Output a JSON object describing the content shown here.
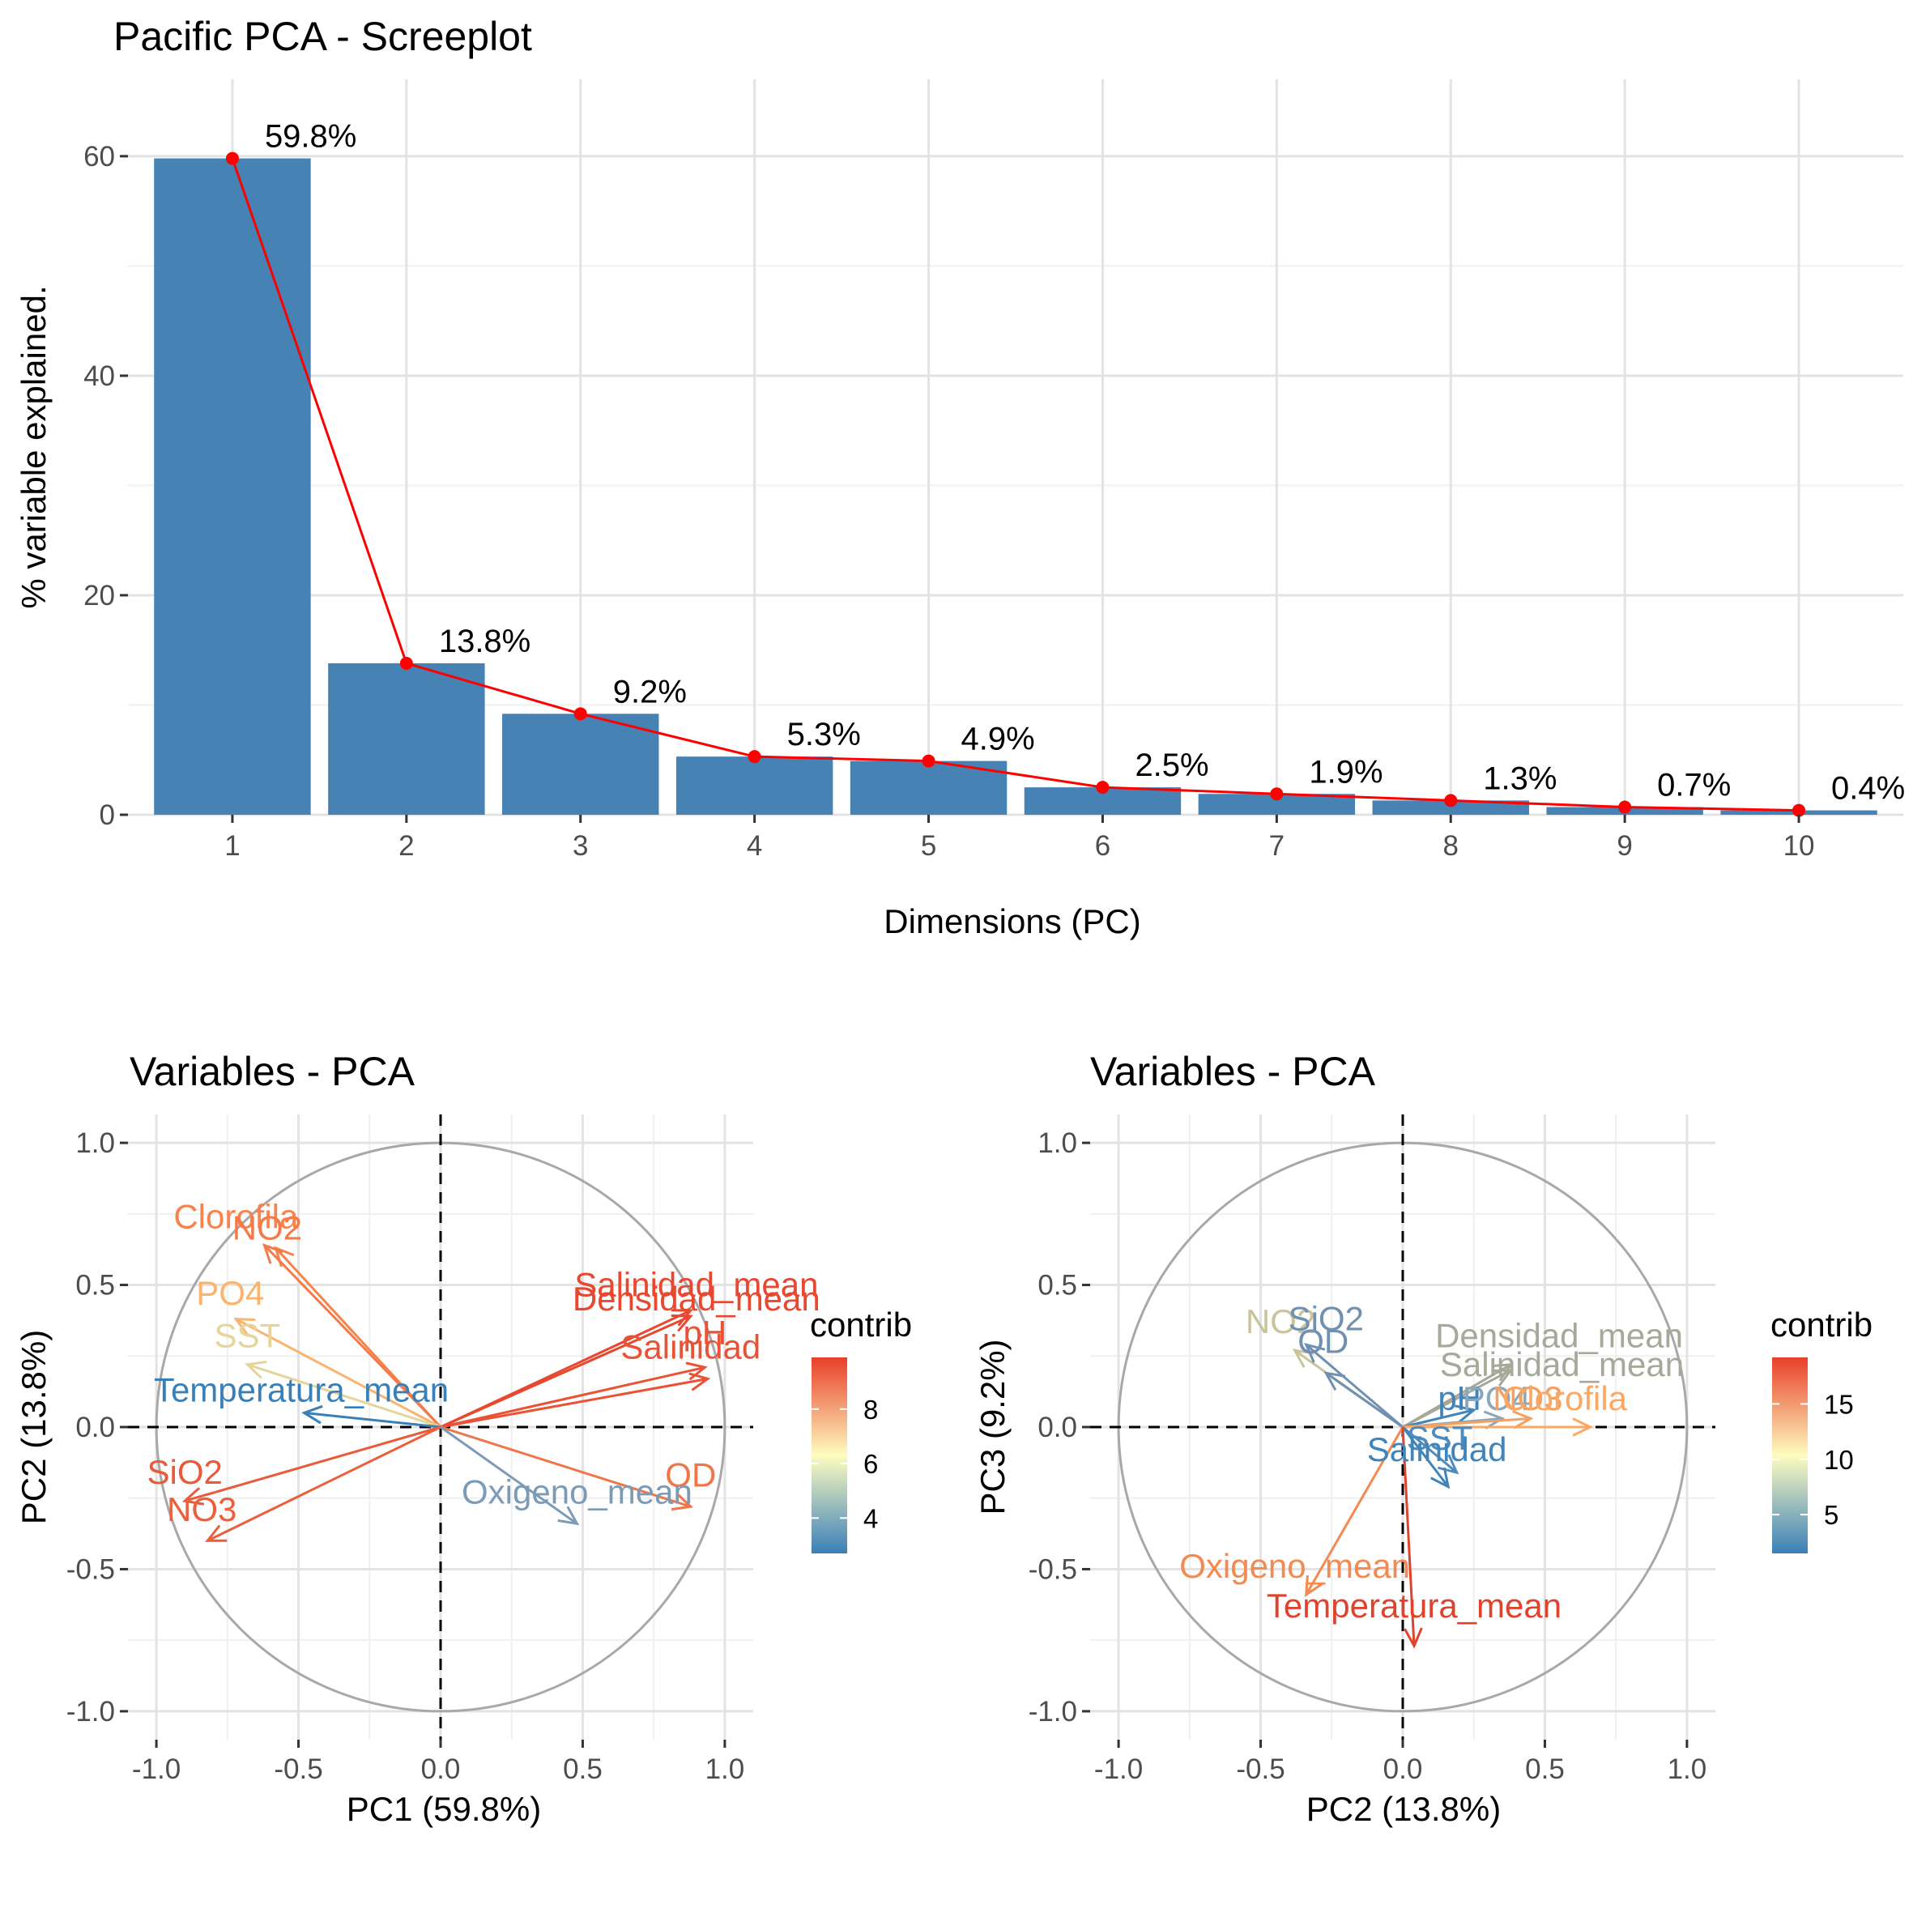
{
  "chart_data": [
    {
      "type": "bar",
      "title": "Pacific PCA - Screeplot",
      "xlabel": "Dimensions (PC)",
      "ylabel": "% variable explained.",
      "categories": [
        "1",
        "2",
        "3",
        "4",
        "5",
        "6",
        "7",
        "8",
        "9",
        "10"
      ],
      "values": [
        59.8,
        13.8,
        9.2,
        5.3,
        4.9,
        2.5,
        1.9,
        1.3,
        0.7,
        0.4
      ],
      "value_labels": [
        "59.8%",
        "13.8%",
        "9.2%",
        "5.3%",
        "4.9%",
        "2.5%",
        "1.9%",
        "1.3%",
        "0.7%",
        "0.4%"
      ],
      "ylim": [
        0,
        67
      ],
      "yticks": [
        0,
        20,
        40,
        60
      ],
      "bar_color": "#4682b4",
      "line_color": "#ff0000",
      "grid": true
    },
    {
      "type": "scatter",
      "title": "Variables - PCA",
      "xlabel": "PC1 (59.8%)",
      "ylabel": "PC2 (13.8%)",
      "xlim": [
        -1.1,
        1.1
      ],
      "ylim": [
        -1.1,
        1.1
      ],
      "ticks": [
        -1.0,
        -0.5,
        0.0,
        0.5,
        1.0
      ],
      "tick_labels": [
        "-1.0",
        "-0.5",
        "0.0",
        "0.5",
        "1.0"
      ],
      "legend_title": "contrib",
      "legend_ticks": [
        {
          "label": "4",
          "value": 4
        },
        {
          "label": "6",
          "value": 6
        },
        {
          "label": "8",
          "value": 8
        }
      ],
      "legend_range": [
        2.7,
        9.9
      ],
      "grid": true,
      "variables": [
        {
          "name": "Clorofila",
          "x": -0.58,
          "y": 0.63,
          "label_x": -0.72,
          "label_y": 0.74,
          "color": "#f7834c"
        },
        {
          "name": "NO2",
          "x": -0.62,
          "y": 0.64,
          "label_x": -0.61,
          "label_y": 0.7,
          "color": "#f47a48"
        },
        {
          "name": "PO4",
          "x": -0.72,
          "y": 0.38,
          "label_x": -0.74,
          "label_y": 0.47,
          "color": "#fbb46e"
        },
        {
          "name": "SST",
          "x": -0.68,
          "y": 0.22,
          "label_x": -0.68,
          "label_y": 0.32,
          "color": "#e5d59a"
        },
        {
          "name": "Temperatura_mean",
          "x": -0.48,
          "y": 0.05,
          "label_x": -0.49,
          "label_y": 0.13,
          "color": "#3a7fb8"
        },
        {
          "name": "SiO2",
          "x": -0.9,
          "y": -0.26,
          "label_x": -0.9,
          "label_y": -0.16,
          "color": "#ea5a3a"
        },
        {
          "name": "NO3",
          "x": -0.82,
          "y": -0.4,
          "label_x": -0.84,
          "label_y": -0.29,
          "color": "#ec5f3c"
        },
        {
          "name": "Salinidad_mean",
          "x": 0.88,
          "y": 0.41,
          "label_x": 0.9,
          "label_y": 0.5,
          "color": "#e84730"
        },
        {
          "name": "Densidad_mean",
          "x": 0.88,
          "y": 0.39,
          "label_x": 0.9,
          "label_y": 0.45,
          "color": "#e84730"
        },
        {
          "name": "pH",
          "x": 0.93,
          "y": 0.21,
          "label_x": 0.93,
          "label_y": 0.33,
          "color": "#e95235"
        },
        {
          "name": "Salinidad",
          "x": 0.94,
          "y": 0.17,
          "label_x": 0.88,
          "label_y": 0.28,
          "color": "#e95235"
        },
        {
          "name": "OD",
          "x": 0.88,
          "y": -0.28,
          "label_x": 0.88,
          "label_y": -0.17,
          "color": "#f07548"
        },
        {
          "name": "Oxigeno_mean",
          "x": 0.48,
          "y": -0.34,
          "label_x": 0.48,
          "label_y": -0.23,
          "color": "#7c9bb6"
        }
      ]
    },
    {
      "type": "scatter",
      "title": "Variables - PCA",
      "xlabel": "PC2 (13.8%)",
      "ylabel": "PC3 (9.2%)",
      "xlim": [
        -1.1,
        1.1
      ],
      "ylim": [
        -1.1,
        1.1
      ],
      "ticks": [
        -1.0,
        -0.5,
        0.0,
        0.5,
        1.0
      ],
      "tick_labels": [
        "-1.0",
        "-0.5",
        "0.0",
        "0.5",
        "1.0"
      ],
      "legend_title": "contrib",
      "legend_ticks": [
        {
          "label": "5",
          "value": 5
        },
        {
          "label": "10",
          "value": 10
        },
        {
          "label": "15",
          "value": 15
        }
      ],
      "legend_range": [
        1.5,
        19.2
      ],
      "grid": true,
      "variables": [
        {
          "name": "NO2",
          "x": -0.38,
          "y": 0.27,
          "label_x": -0.43,
          "label_y": 0.37,
          "color": "#c9c49a"
        },
        {
          "name": "SiO2",
          "x": -0.34,
          "y": 0.29,
          "label_x": -0.27,
          "label_y": 0.38,
          "color": "#6f90b0"
        },
        {
          "name": "OD",
          "x": -0.27,
          "y": 0.19,
          "label_x": -0.28,
          "label_y": 0.3,
          "color": "#6f90b0"
        },
        {
          "name": "Densidad_mean",
          "x": 0.38,
          "y": 0.22,
          "label_x": 0.55,
          "label_y": 0.32,
          "color": "#a6a89a"
        },
        {
          "name": "Salinidad_mean",
          "x": 0.38,
          "y": 0.2,
          "label_x": 0.56,
          "label_y": 0.22,
          "color": "#a6a89a"
        },
        {
          "name": "pH",
          "x": 0.25,
          "y": 0.06,
          "label_x": 0.2,
          "label_y": 0.1,
          "color": "#3f84bb"
        },
        {
          "name": "PO4",
          "x": 0.35,
          "y": 0.03,
          "label_x": 0.33,
          "label_y": 0.1,
          "color": "#8ba7bb"
        },
        {
          "name": "NO3",
          "x": 0.45,
          "y": 0.03,
          "label_x": 0.44,
          "label_y": 0.1,
          "color": "#f4a060"
        },
        {
          "name": "Clorofila",
          "x": 0.66,
          "y": 0.0,
          "label_x": 0.57,
          "label_y": 0.1,
          "color": "#fca863"
        },
        {
          "name": "SST",
          "x": 0.19,
          "y": -0.16,
          "label_x": 0.13,
          "label_y": -0.04,
          "color": "#4f8cbd"
        },
        {
          "name": "Salinidad",
          "x": 0.16,
          "y": -0.21,
          "label_x": 0.12,
          "label_y": -0.08,
          "color": "#3f84bb"
        },
        {
          "name": "Oxigeno_mean",
          "x": -0.34,
          "y": -0.59,
          "label_x": -0.38,
          "label_y": -0.49,
          "color": "#f48a50"
        },
        {
          "name": "Temperatura_mean",
          "x": 0.04,
          "y": -0.77,
          "label_x": 0.04,
          "label_y": -0.63,
          "color": "#e0432d"
        }
      ]
    }
  ]
}
